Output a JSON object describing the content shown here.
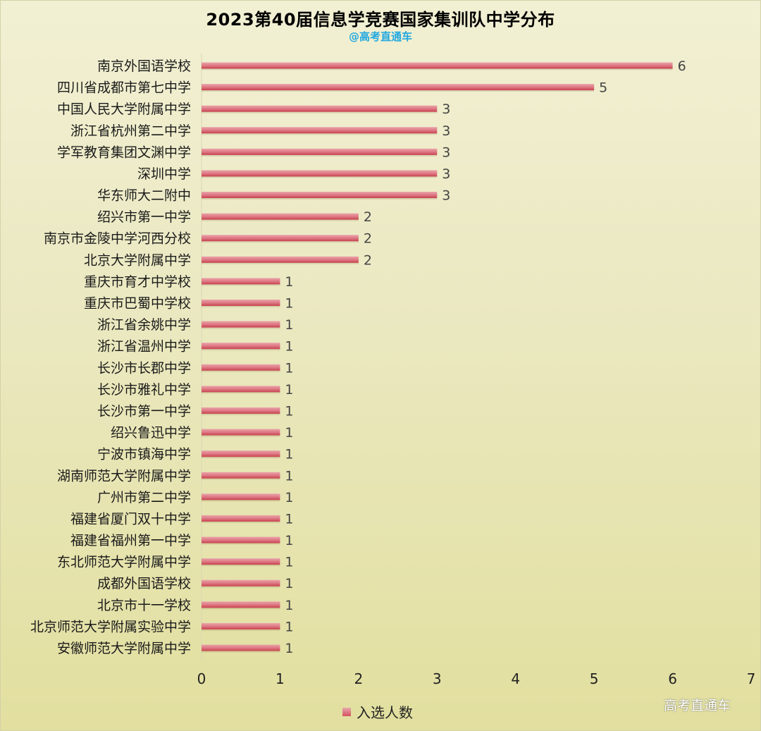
{
  "title": "2023第40届信息学竞赛国家集训队中学分布",
  "subtitle": "@高考直通车",
  "watermark": "高考直通车",
  "legend": {
    "label": "入选人数",
    "position": "bottom"
  },
  "colors": {
    "bar_top": "#eaa3aa",
    "bar_bottom": "#d2505d",
    "title": "#000000",
    "subtitle": "#21a8e0"
  },
  "chart_data": {
    "type": "bar",
    "orientation": "horizontal",
    "title": "2023第40届信息学竞赛国家集训队中学分布",
    "subtitle": "@高考直通车",
    "xlabel": "",
    "ylabel": "",
    "xlim": [
      0,
      7
    ],
    "xticks": [
      "0",
      "1",
      "2",
      "3",
      "4",
      "5",
      "6",
      "7"
    ],
    "grid": false,
    "data_labels": true,
    "legend_position": "bottom",
    "categories": [
      "南京外国语学校",
      "四川省成都市第七中学",
      "中国人民大学附属中学",
      "浙江省杭州第二中学",
      "学军教育集团文渊中学",
      "深圳中学",
      "华东师大二附中",
      "绍兴市第一中学",
      "南京市金陵中学河西分校",
      "北京大学附属中学",
      "重庆市育才中学校",
      "重庆市巴蜀中学校",
      "浙江省余姚中学",
      "浙江省温州中学",
      "长沙市长郡中学",
      "长沙市雅礼中学",
      "长沙市第一中学",
      "绍兴鲁迅中学",
      "宁波市镇海中学",
      "湖南师范大学附属中学",
      "广州市第二中学",
      "福建省厦门双十中学",
      "福建省福州第一中学",
      "东北师范大学附属中学",
      "成都外国语学校",
      "北京市十一学校",
      "北京师范大学附属实验中学",
      "安徽师范大学附属中学"
    ],
    "series": [
      {
        "name": "入选人数",
        "values": [
          6,
          5,
          3,
          3,
          3,
          3,
          3,
          2,
          2,
          2,
          1,
          1,
          1,
          1,
          1,
          1,
          1,
          1,
          1,
          1,
          1,
          1,
          1,
          1,
          1,
          1,
          1,
          1
        ]
      }
    ]
  }
}
